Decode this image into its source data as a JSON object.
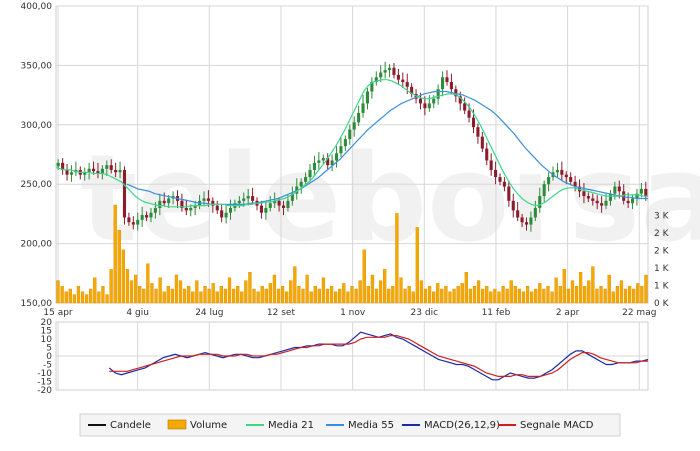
{
  "chart_data": {
    "type": "candlestick",
    "watermark": "teleborsa",
    "x_axis": {
      "ticks": [
        "15 apr",
        "4 giu",
        "24 lug",
        "12 set",
        "1 nov",
        "23 dic",
        "11 feb",
        "2 apr",
        "22 mag"
      ]
    },
    "price_axis": {
      "ylim": [
        150,
        400
      ],
      "ticks": [
        "150,00",
        "200,00",
        "250,00",
        "300,00",
        "350,00",
        "400,00"
      ]
    },
    "volume_axis": {
      "ylim": [
        0,
        3500
      ],
      "ticks": [
        "0 K",
        "1 K",
        "1 K",
        "2 K",
        "2 K",
        "3 K"
      ]
    },
    "macd_axis": {
      "ylim": [
        -20,
        20
      ],
      "ticks": [
        "20",
        "15",
        "10",
        "5",
        "0",
        "-5",
        "-10",
        "-15",
        "-20"
      ]
    },
    "price_series": {
      "candles_close": [
        268,
        262,
        258,
        260,
        262,
        258,
        260,
        263,
        261,
        259,
        263,
        266,
        262,
        260,
        262,
        222,
        218,
        216,
        220,
        224,
        222,
        226,
        230,
        236,
        234,
        238,
        240,
        236,
        230,
        228,
        230,
        232,
        236,
        238,
        236,
        232,
        228,
        222,
        226,
        230,
        234,
        236,
        238,
        240,
        236,
        232,
        226,
        230,
        234,
        236,
        232,
        230,
        236,
        242,
        248,
        252,
        256,
        262,
        268,
        270,
        272,
        266,
        270,
        276,
        282,
        288,
        296,
        302,
        310,
        318,
        328,
        336,
        340,
        344,
        346,
        348,
        342,
        338,
        336,
        332,
        326,
        322,
        318,
        314,
        318,
        322,
        330,
        340,
        336,
        330,
        324,
        318,
        312,
        306,
        298,
        290,
        280,
        270,
        262,
        256,
        252,
        248,
        236,
        228,
        222,
        218,
        216,
        222,
        230,
        240,
        250,
        256,
        260,
        262,
        258,
        256,
        252,
        248,
        244,
        240,
        238,
        236,
        234,
        232,
        236,
        242,
        248,
        244,
        236,
        234,
        238,
        242,
        246,
        240
      ],
      "ma21": [
        264,
        263,
        262,
        262,
        261,
        260,
        260,
        260,
        259,
        259,
        259,
        258,
        256,
        254,
        252,
        248,
        244,
        240,
        237,
        235,
        234,
        233,
        232,
        232,
        231,
        231,
        231,
        231,
        231,
        232,
        232,
        232,
        232,
        233,
        233,
        233,
        233,
        232,
        232,
        232,
        232,
        233,
        233,
        234,
        234,
        235,
        235,
        236,
        237,
        238,
        240,
        242,
        245,
        248,
        251,
        255,
        260,
        265,
        270,
        276,
        282,
        289,
        296,
        304,
        312,
        320,
        328,
        333,
        336,
        337,
        338,
        338,
        337,
        335,
        333,
        330,
        327,
        325,
        323,
        322,
        322,
        323,
        324,
        325,
        326,
        326,
        325,
        322,
        318,
        313,
        307,
        300,
        292,
        284,
        276,
        268,
        260,
        253,
        247,
        242,
        238,
        235,
        233,
        232,
        233,
        235,
        238,
        241,
        244,
        246,
        247,
        247,
        246,
        245,
        244,
        243,
        242,
        241,
        240,
        240,
        240,
        240,
        241,
        241,
        241,
        241,
        240,
        240
      ],
      "ma55": [
        250,
        248,
        246,
        245,
        244,
        242,
        241,
        240,
        239,
        238,
        237,
        236,
        235,
        234,
        234,
        233,
        233,
        233,
        233,
        233,
        233,
        233,
        234,
        234,
        235,
        236,
        237,
        238,
        240,
        242,
        244,
        246,
        249,
        252,
        255,
        259,
        263,
        267,
        271,
        276,
        281,
        286,
        291,
        296,
        300,
        304,
        308,
        312,
        315,
        318,
        320,
        322,
        324,
        326,
        327,
        328,
        328,
        328,
        327,
        326,
        325,
        323,
        321,
        318,
        315,
        312,
        308,
        303,
        298,
        293,
        287,
        281,
        276,
        271,
        266,
        262,
        258,
        255,
        252,
        250,
        248,
        247,
        246,
        245,
        244,
        243,
        242,
        241,
        240,
        239,
        239,
        238,
        238,
        238
      ]
    },
    "volume_series": {
      "values": [
        0.8,
        0.6,
        0.4,
        0.5,
        0.3,
        0.6,
        0.4,
        0.3,
        0.5,
        0.9,
        0.4,
        0.6,
        0.3,
        1.2,
        3.5,
        2.6,
        1.9,
        1.2,
        0.8,
        1.0,
        0.6,
        0.5,
        1.4,
        0.7,
        0.5,
        0.9,
        0.4,
        0.6,
        0.5,
        1.0,
        0.8,
        0.5,
        0.6,
        0.4,
        0.8,
        0.4,
        0.6,
        0.5,
        0.7,
        0.4,
        0.6,
        0.5,
        0.9,
        0.5,
        0.6,
        0.4,
        0.8,
        1.1,
        0.5,
        0.4,
        0.6,
        0.5,
        0.7,
        1.0,
        0.5,
        0.6,
        0.4,
        0.8,
        1.3,
        0.6,
        0.5,
        1.0,
        0.4,
        0.6,
        0.5,
        0.9,
        0.5,
        0.6,
        0.4,
        0.5,
        0.7,
        0.4,
        0.6,
        0.5,
        0.8,
        1.9,
        0.6,
        1.0,
        0.5,
        0.8,
        1.2,
        0.5,
        0.6,
        3.2,
        0.9,
        0.5,
        0.6,
        0.4,
        2.7,
        0.8,
        0.5,
        0.6,
        0.4,
        0.7,
        0.5,
        0.6,
        0.4,
        0.5,
        0.6,
        0.7,
        1.1,
        0.5,
        0.6,
        0.8,
        0.5,
        0.6,
        0.4,
        0.5,
        0.4,
        0.6,
        0.5,
        0.8,
        0.6,
        0.5,
        0.4,
        0.6,
        0.4,
        0.5,
        0.7,
        0.5,
        0.6,
        0.4,
        0.9,
        0.6,
        1.2,
        0.5,
        0.8,
        0.6,
        1.1,
        0.6,
        0.8,
        1.3,
        0.5,
        0.6,
        0.5,
        1.0,
        0.4,
        0.6,
        0.8,
        0.5,
        0.6,
        0.5,
        0.7,
        0.6,
        1.0
      ]
    },
    "macd_series": [
      {
        "name": "MACD(26,12,9)",
        "color": "#1b2aa8",
        "values": [
          -7,
          -10,
          -11,
          -10,
          -9,
          -8,
          -7,
          -5,
          -3,
          -1,
          0,
          1,
          0,
          -1,
          0,
          1,
          2,
          1,
          0,
          -1,
          0,
          1,
          1,
          0,
          -1,
          -1,
          0,
          1,
          2,
          3,
          4,
          5,
          5,
          6,
          6,
          7,
          7,
          7,
          6,
          6,
          8,
          11,
          14,
          13,
          12,
          11,
          12,
          13,
          11,
          10,
          8,
          6,
          4,
          2,
          0,
          -2,
          -3,
          -4,
          -5,
          -5,
          -6,
          -8,
          -10,
          -12,
          -14,
          -14,
          -12,
          -10,
          -11,
          -12,
          -13,
          -13,
          -12,
          -10,
          -8,
          -5,
          -2,
          1,
          3,
          3,
          1,
          -1,
          -3,
          -5,
          -5,
          -4,
          -4,
          -4,
          -3,
          -3,
          -2
        ]
      },
      {
        "name": "Segnale MACD",
        "color": "#cc2020",
        "values": [
          -9,
          -9,
          -9,
          -9,
          -8,
          -7,
          -6,
          -5,
          -4,
          -3,
          -2,
          -1,
          0,
          0,
          0,
          1,
          1,
          1,
          1,
          0,
          0,
          0,
          1,
          1,
          0,
          0,
          0,
          1,
          1,
          2,
          3,
          4,
          5,
          5,
          6,
          6,
          7,
          7,
          7,
          7,
          7,
          8,
          10,
          11,
          11,
          11,
          11,
          12,
          12,
          11,
          10,
          8,
          6,
          4,
          2,
          0,
          -1,
          -2,
          -3,
          -4,
          -5,
          -6,
          -8,
          -10,
          -11,
          -12,
          -12,
          -12,
          -11,
          -11,
          -12,
          -12,
          -12,
          -11,
          -10,
          -8,
          -5,
          -2,
          0,
          2,
          2,
          1,
          -1,
          -2,
          -3,
          -4,
          -4,
          -4,
          -4,
          -3,
          -3
        ]
      }
    ],
    "colors": {
      "up": "#2e8b3a",
      "down": "#8b1c2c",
      "volume": "#f5a900",
      "ma21": "#3dd68c",
      "ma55": "#3a8fd8",
      "grid": "#d7d7d7"
    },
    "legend": [
      {
        "label": "Candele",
        "color": "#111111",
        "kind": "line"
      },
      {
        "label": "Volume",
        "color": "#f5a900",
        "kind": "box"
      },
      {
        "label": "Media 21",
        "color": "#3dd68c",
        "kind": "line"
      },
      {
        "label": "Media 55",
        "color": "#3a8fd8",
        "kind": "line"
      },
      {
        "label": "MACD(26,12,9)",
        "color": "#1b2aa8",
        "kind": "line"
      },
      {
        "label": "Segnale MACD",
        "color": "#cc2020",
        "kind": "line"
      }
    ]
  }
}
